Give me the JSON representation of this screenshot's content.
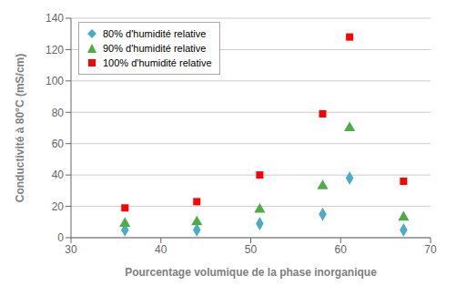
{
  "chart_data": {
    "type": "scatter",
    "x_label": "Pourcentage volumique de la phase inorganique",
    "y_label": "Conductivité à 80°C (mS/cm)",
    "x": [
      36,
      44,
      51,
      58,
      61,
      67
    ],
    "series": [
      {
        "name": "80% d'humidité relative",
        "color": "#4BACC6",
        "marker": "diamond",
        "values": [
          5,
          5,
          9,
          15,
          38,
          5
        ]
      },
      {
        "name": "90% d'humidité relative",
        "color": "#4EAC45",
        "marker": "triangle",
        "values": [
          9,
          10,
          18,
          33,
          70,
          13
        ]
      },
      {
        "name": "100% d'humidité relative",
        "color": "#FF0000",
        "marker": "square",
        "values": [
          19,
          23,
          40,
          79,
          128,
          36
        ]
      }
    ],
    "xlim": [
      30,
      70
    ],
    "ylim": [
      0,
      140
    ],
    "xticks": [
      30,
      40,
      50,
      60,
      70
    ],
    "yticks": [
      0,
      20,
      40,
      60,
      80,
      100,
      120,
      140
    ],
    "grid": true,
    "legend": "upper left"
  }
}
